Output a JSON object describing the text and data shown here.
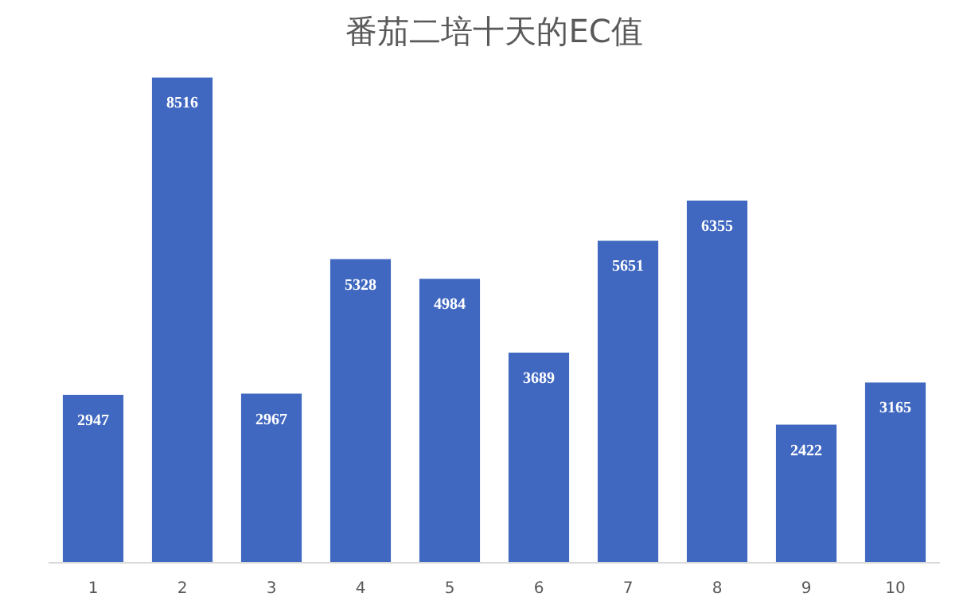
{
  "chart_data": {
    "type": "bar",
    "title": "番茄二培十天的EC值",
    "categories": [
      "1",
      "2",
      "3",
      "4",
      "5",
      "6",
      "7",
      "8",
      "9",
      "10"
    ],
    "values": [
      2947,
      8516,
      2967,
      5328,
      4984,
      3689,
      5651,
      6355,
      2422,
      3165
    ],
    "color": "#4068c0",
    "data_labels": true
  }
}
